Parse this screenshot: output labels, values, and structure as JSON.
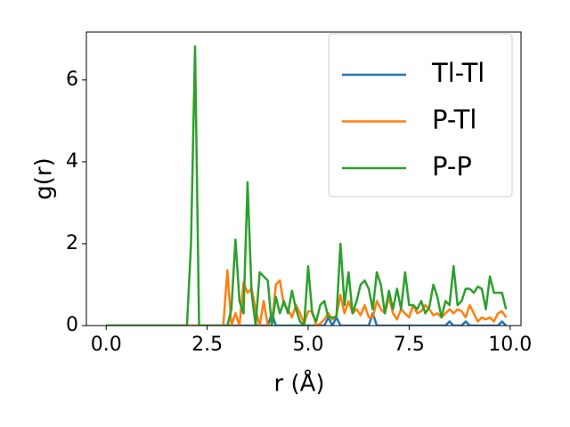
{
  "chart_data": {
    "type": "line",
    "xlabel": "r (Å)",
    "ylabel": "g(r)",
    "x": [
      0,
      0.1,
      0.2,
      0.3,
      0.4,
      0.5,
      0.6,
      0.7,
      0.8,
      0.9,
      1,
      1.1,
      1.2,
      1.3,
      1.4,
      1.5,
      1.6,
      1.7,
      1.8,
      1.9,
      2,
      2.1,
      2.2,
      2.3,
      2.4,
      2.5,
      2.6,
      2.7,
      2.8,
      2.9,
      3,
      3.1,
      3.2,
      3.3,
      3.4,
      3.5,
      3.6,
      3.7,
      3.8,
      3.9,
      4,
      4.1,
      4.2,
      4.3,
      4.4,
      4.5,
      4.6,
      4.7,
      4.8,
      4.9,
      5,
      5.1,
      5.2,
      5.3,
      5.4,
      5.5,
      5.6,
      5.7,
      5.8,
      5.9,
      6,
      6.1,
      6.2,
      6.3,
      6.4,
      6.5,
      6.6,
      6.7,
      6.8,
      6.9,
      7,
      7.1,
      7.2,
      7.3,
      7.4,
      7.5,
      7.6,
      7.7,
      7.8,
      7.9,
      8,
      8.1,
      8.2,
      8.3,
      8.4,
      8.5,
      8.6,
      8.7,
      8.8,
      8.9,
      9,
      9.1,
      9.2,
      9.3,
      9.4,
      9.5,
      9.6,
      9.7,
      9.8,
      9.9
    ],
    "series": [
      {
        "name": "Tl-Tl",
        "color": "#1f77b4",
        "values": [
          0,
          0,
          0,
          0,
          0,
          0,
          0,
          0,
          0,
          0,
          0,
          0,
          0,
          0,
          0,
          0,
          0,
          0,
          0,
          0,
          0,
          0,
          0,
          0,
          0,
          0,
          0,
          0,
          0,
          0,
          0,
          0,
          0,
          0,
          0,
          0,
          0,
          0,
          0,
          0,
          0,
          0.3,
          0,
          0,
          0,
          0,
          0,
          0,
          0,
          0,
          0,
          0,
          0,
          0,
          0,
          0.2,
          0,
          0.2,
          0,
          0,
          0,
          0,
          0,
          0,
          0,
          0,
          0.3,
          0,
          0,
          0,
          0,
          0,
          0,
          0,
          0,
          0,
          0,
          0,
          0,
          0,
          0,
          0,
          0,
          0,
          0,
          0.1,
          0,
          0,
          0,
          0.1,
          0,
          0,
          0,
          0,
          0,
          0,
          0,
          0,
          0.1,
          0
        ]
      },
      {
        "name": "P-Tl",
        "color": "#ff7f0e",
        "values": [
          0,
          0,
          0,
          0,
          0,
          0,
          0,
          0,
          0,
          0,
          0,
          0,
          0,
          0,
          0,
          0,
          0,
          0,
          0,
          0,
          0,
          0,
          0,
          0,
          0,
          0,
          0,
          0,
          0,
          0,
          1.35,
          0,
          0.3,
          0,
          1.05,
          0.8,
          0.9,
          0.4,
          0,
          0.6,
          0,
          0,
          1.0,
          1.1,
          0.5,
          0.4,
          0.2,
          0.5,
          0.3,
          0.05,
          0.35,
          0.35,
          0,
          0.05,
          0.15,
          0.3,
          0.15,
          0.25,
          0.75,
          0.3,
          0.6,
          0.3,
          0.4,
          0.25,
          0.5,
          0.2,
          0.2,
          0.6,
          0.4,
          0.3,
          0.7,
          0.3,
          0.15,
          0.4,
          0.3,
          0.2,
          0.5,
          0.3,
          0.35,
          0.5,
          0.4,
          0.25,
          0.3,
          0.2,
          0.3,
          0.4,
          0.3,
          0.4,
          0.35,
          0.2,
          0.5,
          0.3,
          0.1,
          0.2,
          0.15,
          0.2,
          0.1,
          0.3,
          0.35,
          0.2
        ]
      },
      {
        "name": "P-P",
        "color": "#2ca02c",
        "values": [
          0,
          0,
          0,
          0,
          0,
          0,
          0,
          0,
          0,
          0,
          0,
          0,
          0,
          0,
          0,
          0,
          0,
          0,
          0,
          0,
          0,
          2.0,
          6.82,
          0,
          0,
          0,
          0,
          0,
          0,
          0,
          0,
          0.4,
          2.1,
          0.6,
          0.3,
          3.5,
          0.8,
          0,
          1.3,
          1.2,
          1.1,
          0,
          0.7,
          0.3,
          0.6,
          0.3,
          0.85,
          0.4,
          0.1,
          0,
          1.45,
          0.3,
          0.1,
          0.5,
          0.6,
          0.2,
          0.2,
          0.2,
          2.0,
          0.5,
          1.3,
          0.3,
          0.6,
          1.0,
          1.1,
          0.9,
          0.4,
          1.3,
          1.0,
          0.3,
          0.85,
          0.4,
          0.9,
          0.4,
          1.3,
          0.5,
          0.5,
          0.4,
          0.6,
          0.3,
          0.45,
          1.0,
          0.7,
          0.2,
          0.6,
          0.5,
          1.45,
          0.5,
          0.6,
          0.9,
          0.9,
          0.8,
          0.95,
          0.9,
          0.4,
          1.2,
          0.8,
          0.8,
          0.8,
          0.4
        ]
      }
    ],
    "xlim": [
      -0.49,
      10.27
    ],
    "ylim": [
      0,
      7.17
    ],
    "xticks": [
      {
        "value": 0,
        "label": "0.0"
      },
      2.5,
      {
        "value": 5,
        "label": "5.0"
      },
      7.5,
      {
        "value": 10,
        "label": "10.0"
      }
    ],
    "yticks": [
      0,
      2,
      4,
      6
    ],
    "legend": "upper right"
  }
}
